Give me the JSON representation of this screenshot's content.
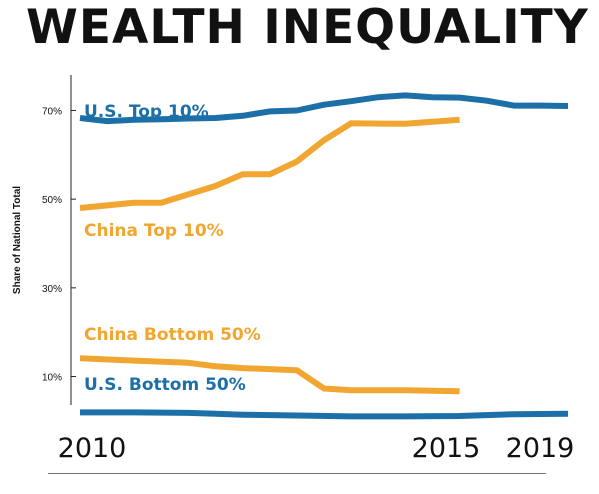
{
  "title": "WEALTH INEQUALITY",
  "chart_data": {
    "type": "line",
    "title": "WEALTH INEQUALITY",
    "ylabel": "Share of National Total",
    "xlim": [
      2010,
      2019
    ],
    "ylim": [
      2,
      78
    ],
    "ytick_values": [
      10,
      30,
      50,
      70
    ],
    "ytick_labels": [
      "10%",
      "30%",
      "50%",
      "70%"
    ],
    "xtick_values": [
      2010,
      2015,
      2019
    ],
    "xtick_labels": [
      "2010",
      "2015",
      "2019"
    ],
    "grid": false,
    "series": [
      {
        "name": "U.S. Top 10%",
        "color": "#1d6fa8",
        "x": [
          2010,
          2010.5,
          2011,
          2011.5,
          2012,
          2012.5,
          2013,
          2013.5,
          2014,
          2014.5,
          2015,
          2015.5,
          2016,
          2016.5,
          2017,
          2017.5,
          2018,
          2018.5,
          2019
        ],
        "y": [
          68.3,
          67.6,
          67.9,
          68.0,
          68.2,
          68.3,
          68.8,
          69.8,
          70.0,
          71.3,
          72.1,
          73.0,
          73.4,
          73.0,
          72.9,
          72.2,
          71.1,
          71.1,
          71.0
        ]
      },
      {
        "name": "China Top 10%",
        "color": "#f0a630",
        "x": [
          2010,
          2011,
          2011.5,
          2012.5,
          2013,
          2013.5,
          2014,
          2014.5,
          2015,
          2016,
          2017
        ],
        "y": [
          48.0,
          49.2,
          49.2,
          53.0,
          55.6,
          55.6,
          58.5,
          63.3,
          67.1,
          67.0,
          67.9
        ]
      },
      {
        "name": "China Bottom 50%",
        "color": "#f0a630",
        "x": [
          2010,
          2011,
          2012,
          2012.5,
          2013,
          2014,
          2014.5,
          2015,
          2016,
          2017
        ],
        "y": [
          14.1,
          13.6,
          13.1,
          12.3,
          11.9,
          11.4,
          7.3,
          6.9,
          6.9,
          6.7
        ]
      },
      {
        "name": "U.S. Bottom 50%",
        "color": "#1d6fa8",
        "x": [
          2010,
          2011,
          2012,
          2012.5,
          2013,
          2014,
          2015,
          2016,
          2017,
          2018,
          2019
        ],
        "y": [
          1.9,
          1.9,
          1.8,
          1.6,
          1.4,
          1.2,
          1.0,
          1.0,
          1.1,
          1.5,
          1.6
        ]
      }
    ]
  }
}
